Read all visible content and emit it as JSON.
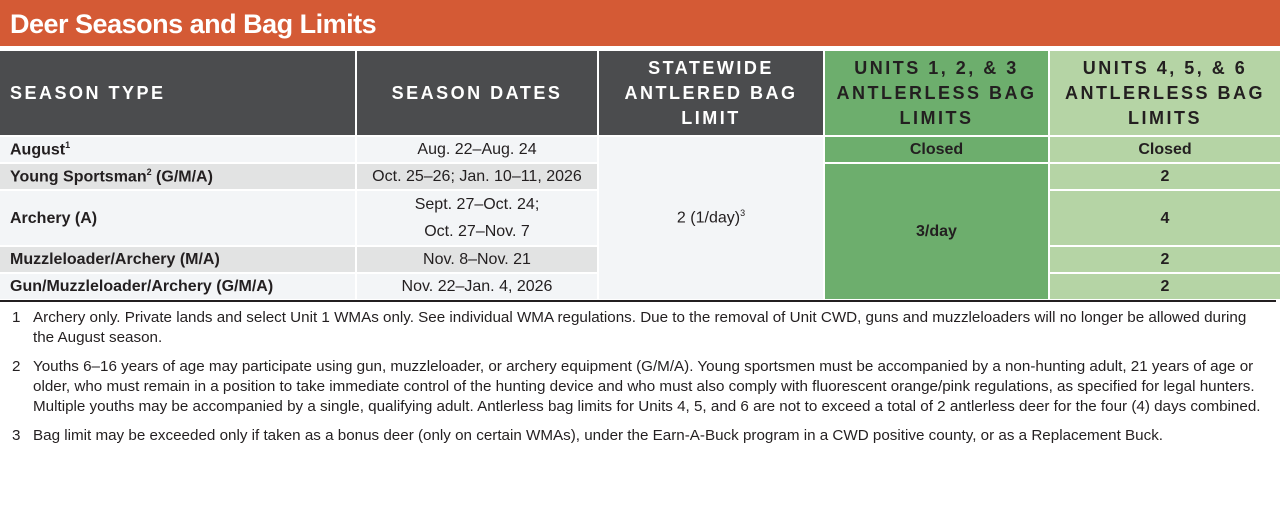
{
  "title": "Deer Seasons and Bag Limits",
  "headers": {
    "season_type": "SEASON TYPE",
    "season_dates": "SEASON DATES",
    "antlered": "STATEWIDE ANTLERED BAG LIMIT",
    "units123": "UNITS 1, 2, & 3 ANTLERLESS BAG LIMITS",
    "units456": "UNITS 4, 5, & 6 ANTLERLESS BAG LIMITS"
  },
  "colors": {
    "title_bar": "#d45a35",
    "header": "#4b4c4e",
    "units123": "#6dae6d",
    "units456": "#b5d4a5"
  },
  "rows": [
    {
      "type": "August",
      "sup": "1",
      "dates": "Aug. 22–Aug. 24",
      "units456": "Closed"
    },
    {
      "type": "Young Sportsman",
      "sup": "2",
      "type_suffix": " (G/M/A)",
      "dates": "Oct. 25–26; Jan. 10–11, 2026",
      "units456": "2"
    },
    {
      "type": "Archery (A)",
      "dates_line1": "Sept. 27–Oct. 24;",
      "dates_line2": "Oct. 27–Nov. 7",
      "units456": "4"
    },
    {
      "type": "Muzzleloader/Archery (M/A)",
      "dates": "Nov. 8–Nov. 21",
      "units456": "2"
    },
    {
      "type": "Gun/Muzzleloader/Archery (G/M/A)",
      "dates": "Nov. 22–Jan. 4, 2026",
      "units456": "2"
    }
  ],
  "antlered": {
    "value": "2 (1/day)",
    "sup": "3"
  },
  "units123": {
    "closed": "Closed",
    "value": "3/day"
  },
  "footnotes": [
    {
      "num": "1",
      "text": "Archery only. Private lands and select Unit 1 WMAs only. See individual WMA regulations. Due to the removal of Unit CWD, guns and muzzleloaders will no longer be allowed during the August season."
    },
    {
      "num": "2",
      "text": "Youths 6–16 years of age may participate using gun, muzzleloader, or archery equipment (G/M/A). Young sportsmen must be accompanied by a non-hunting adult, 21 years of age or older, who must remain in a position to take immediate control of the hunting device and who must also comply with fluorescent orange/pink regulations, as specified for legal hunters. Multiple youths may be accompanied by a single, qualifying adult. Antlerless bag limits for Units 4, 5, and 6 are not to exceed a total of 2 antlerless deer for the four (4) days combined."
    },
    {
      "num": "3",
      "text": "Bag limit may be exceeded only if taken as a bonus deer (only on certain WMAs), under the Earn-A-Buck program in a CWD positive county, or as a Replacement Buck."
    }
  ]
}
